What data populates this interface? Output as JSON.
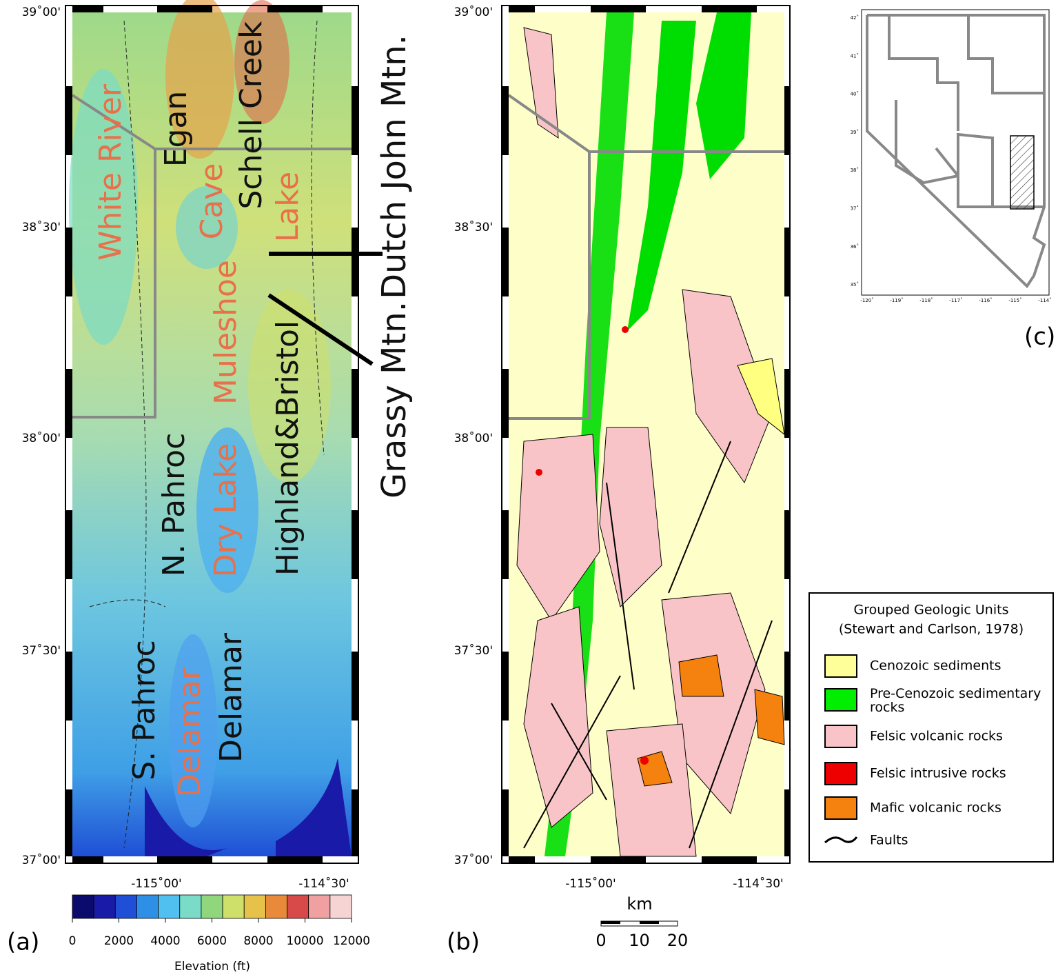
{
  "panel_a": {
    "label": "(a)",
    "lat_labels": [
      "39˚00'",
      "38˚30'",
      "38˚00'",
      "37˚30'",
      "37˚00'"
    ],
    "lon_labels": [
      "-115˚00'",
      "-114˚30'"
    ],
    "places": {
      "white_river": "White River",
      "egan": "Egan",
      "cave": "Cave",
      "schell_creek": "Schell Creek",
      "lake": "Lake",
      "muleshoe": "Muleshoe",
      "highland_bristol": "Highland&Bristol",
      "n_pahroc": "N. Pahroc",
      "dry_lake": "Dry Lake",
      "s_pahroc": "S. Pahroc",
      "delamar_valley": "Delamar",
      "delamar_range": "Delamar"
    },
    "callouts": {
      "dutch_john": "Dutch John Mtn.",
      "grassy": "Grassy Mtn."
    },
    "colorbar": {
      "ticks": [
        0,
        2000,
        4000,
        6000,
        8000,
        10000,
        12000
      ],
      "colors": [
        "#0b0b6e",
        "#1a1aa8",
        "#1f4fd6",
        "#2d8fe6",
        "#4fc0ef",
        "#79dbc8",
        "#8fd67c",
        "#cfe06a",
        "#e6c24a",
        "#e88a3a",
        "#d84a4a",
        "#f0a0a0",
        "#f6d4d4"
      ],
      "label": "Elevation (ft)"
    }
  },
  "panel_b": {
    "label": "(b)",
    "lat_labels": [
      "39˚00'",
      "38˚30'",
      "38˚00'",
      "37˚30'",
      "37˚00'"
    ],
    "lon_labels": [
      "-115˚00'",
      "-114˚30'"
    ],
    "scale_unit": "km",
    "scale_ticks": [
      0,
      10,
      20
    ]
  },
  "panel_c": {
    "label": "(c)",
    "lat_labels": [
      "42˚",
      "41˚",
      "40˚",
      "39˚",
      "38˚",
      "37˚",
      "36˚",
      "35˚"
    ],
    "lon_labels": [
      "-120˚",
      "-119˚",
      "-118˚",
      "-117˚",
      "-116˚",
      "-115˚",
      "-114˚"
    ]
  },
  "legend": {
    "title": "Grouped Geologic Units",
    "subtitle": "(Stewart and Carlson, 1978)",
    "items": [
      {
        "name": "Cenozoic sediments",
        "color": "#ffff99"
      },
      {
        "name": "Pre-Cenozoic sedimentary rocks",
        "color": "#00ee00"
      },
      {
        "name": "Felsic volcanic rocks",
        "color": "#f8c4c8"
      },
      {
        "name": "Felsic intrusive rocks",
        "color": "#ee0000"
      },
      {
        "name": "Mafic volcanic rocks",
        "color": "#f5820e"
      }
    ],
    "faults": "Faults"
  }
}
